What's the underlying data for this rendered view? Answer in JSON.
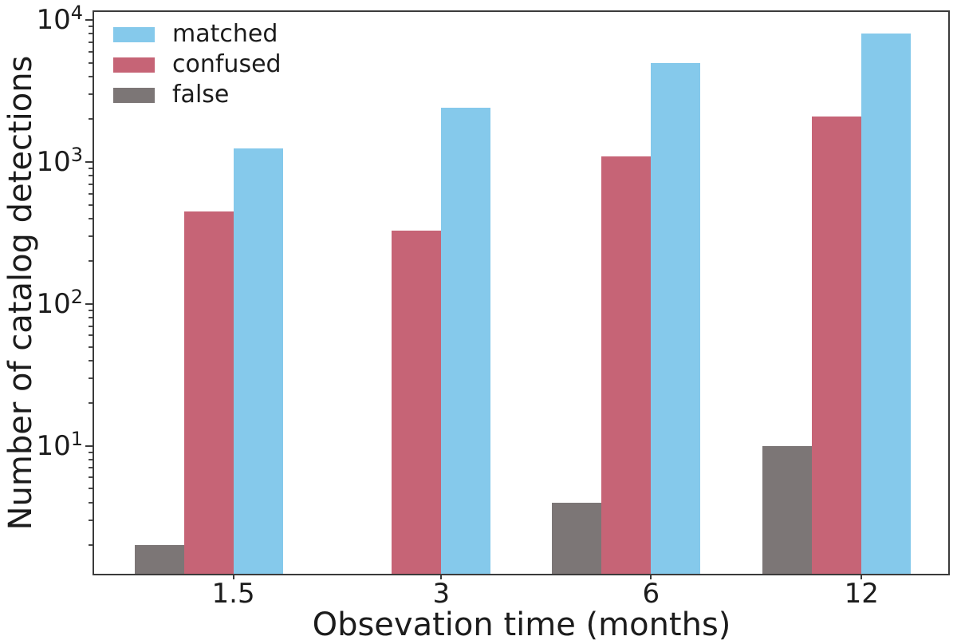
{
  "chart_data": {
    "type": "bar",
    "title": "",
    "xlabel": "Obsevation time (months)",
    "ylabel": "Number of catalog detections",
    "yscale": "log",
    "ylim": [
      1.26,
      11400
    ],
    "grid": false,
    "legend_position": "upper-left",
    "categories": [
      "1.5",
      "3",
      "6",
      "12"
    ],
    "series": [
      {
        "name": "matched",
        "color": "#85C9EB",
        "values": [
          1250,
          2400,
          5000,
          8000
        ]
      },
      {
        "name": "confused",
        "color": "#C66476",
        "values": [
          450,
          330,
          1100,
          2100
        ]
      },
      {
        "name": "false",
        "color": "#7C7676",
        "values": [
          2,
          0,
          4,
          10
        ]
      }
    ],
    "y_major_ticks": [
      {
        "base": "10",
        "exp": "4",
        "value": 10000
      },
      {
        "base": "10",
        "exp": "3",
        "value": 1000
      },
      {
        "base": "10",
        "exp": "2",
        "value": 100
      },
      {
        "base": "10",
        "exp": "1",
        "value": 10
      }
    ]
  }
}
